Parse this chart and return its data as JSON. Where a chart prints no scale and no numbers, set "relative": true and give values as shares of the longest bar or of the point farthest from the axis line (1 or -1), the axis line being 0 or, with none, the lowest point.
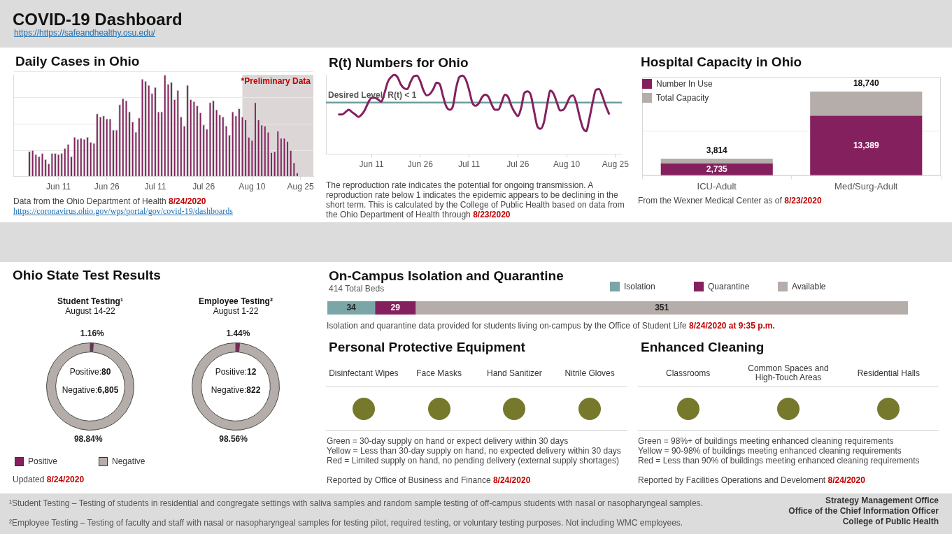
{
  "chart_data": [
    {
      "type": "other",
      "title": "COVID-19 Dashboard",
      "annotations": [
        "https://https://safeandhealthy.osu.edu/"
      ]
    },
    {
      "type": "bar",
      "title": "Daily Cases in Ohio",
      "x": [
        "--06-02",
        "--06-03",
        "--06-04",
        "--06-05",
        "--06-06",
        "--06-07",
        "--06-08",
        "--06-09",
        "--06-10",
        "--06-11",
        "--06-12",
        "--06-13",
        "--06-14",
        "--06-15",
        "--06-16",
        "--06-17",
        "--06-18",
        "--06-19",
        "--06-20",
        "--06-21",
        "--06-22",
        "--06-23",
        "--06-24",
        "--06-25",
        "--06-26",
        "--06-27",
        "--06-28",
        "--06-29",
        "--06-30",
        "--07-01",
        "--07-02",
        "--07-03",
        "--07-04",
        "--07-05",
        "--07-06",
        "--07-07",
        "--07-08",
        "--07-09",
        "--07-10",
        "--07-11",
        "--07-12",
        "--07-13",
        "--07-14",
        "--07-15",
        "--07-16",
        "--07-17",
        "--07-18",
        "--07-19",
        "--07-20",
        "--07-21",
        "--07-22",
        "--07-23",
        "--07-24",
        "--07-25",
        "--07-26",
        "--07-27",
        "--07-28",
        "--07-29",
        "--07-30",
        "--07-31",
        "--08-01",
        "--08-02",
        "--08-03",
        "--08-04",
        "--08-05",
        "--08-06",
        "--08-07",
        "--08-08",
        "--08-09",
        "--08-10",
        "--08-11",
        "--08-12",
        "--08-13",
        "--08-14",
        "--08-15",
        "--08-16",
        "--08-17",
        "--08-18",
        "--08-19",
        "--08-20",
        "--08-21",
        "--08-22",
        "--08-23",
        "--08-24"
      ],
      "values": [
        0.25,
        0.26,
        0.22,
        0.2,
        0.23,
        0.17,
        0.13,
        0.23,
        0.23,
        0.22,
        0.23,
        0.28,
        0.32,
        0.2,
        0.39,
        0.37,
        0.38,
        0.37,
        0.39,
        0.34,
        0.33,
        0.62,
        0.59,
        0.6,
        0.57,
        0.57,
        0.46,
        0.46,
        0.71,
        0.77,
        0.75,
        0.64,
        0.54,
        0.44,
        0.58,
        0.96,
        0.94,
        0.9,
        0.82,
        0.88,
        0.64,
        0.64,
        1,
        0.91,
        0.93,
        0.76,
        0.85,
        0.59,
        0.5,
        0.9,
        0.76,
        0.74,
        0.7,
        0.63,
        0.51,
        0.47,
        0.73,
        0.75,
        0.66,
        0.61,
        0.59,
        0.5,
        0.41,
        0.64,
        0.6,
        0.67,
        0.59,
        0.56,
        0.39,
        0.36,
        0.73,
        0.56,
        0.51,
        0.5,
        0.44,
        0.24,
        0.25,
        0.45,
        0.38,
        0.38,
        0.35,
        0.26,
        0.14,
        0.04
      ],
      "color": "#85205e",
      "relative": true,
      "xlim": [
        "--05-28",
        "--08-29"
      ],
      "xticks": [
        {
          "value": "--06-11",
          "label": "Jun 11"
        },
        {
          "value": "--06-26",
          "label": "Jun 26"
        },
        {
          "value": "--07-11",
          "label": "Jul 11"
        },
        {
          "value": "--07-26",
          "label": "Jul 26"
        },
        {
          "value": "--08-10",
          "label": "Aug 10"
        },
        {
          "value": "--08-25",
          "label": "Aug 25"
        }
      ],
      "grid": "y",
      "bands": [
        {
          "axis": "x",
          "from": "--08-07",
          "to": "--08-29",
          "label": "*Preliminary Data",
          "color": "#dcd6d6"
        }
      ],
      "annotations": [
        "Data from the Ohio Department of Health 8/24/2020",
        "https://coronavirus.ohio.gov/wps/portal/gov/covid-19/dashboards"
      ]
    },
    {
      "type": "line",
      "title": "R(t) Numbers for Ohio",
      "x": [
        "--06-01",
        "--06-02",
        "--06-03",
        "--06-04",
        "--06-05",
        "--06-06",
        "--06-07",
        "--06-08",
        "--06-09",
        "--06-10",
        "--06-11",
        "--06-12",
        "--06-13",
        "--06-14",
        "--06-15",
        "--06-16",
        "--06-17",
        "--06-18",
        "--06-19",
        "--06-20",
        "--06-21",
        "--06-22",
        "--06-23",
        "--06-24",
        "--06-25",
        "--06-26",
        "--06-27",
        "--06-28",
        "--06-29",
        "--06-30",
        "--07-01",
        "--07-02",
        "--07-03",
        "--07-04",
        "--07-05",
        "--07-06",
        "--07-07",
        "--07-08",
        "--07-09",
        "--07-10",
        "--07-11",
        "--07-12",
        "--07-13",
        "--07-14",
        "--07-15",
        "--07-16",
        "--07-17",
        "--07-18",
        "--07-19",
        "--07-20",
        "--07-21",
        "--07-22",
        "--07-23",
        "--07-24",
        "--07-25",
        "--07-26",
        "--07-27",
        "--07-28",
        "--07-29",
        "--07-30",
        "--07-31",
        "--08-01",
        "--08-02",
        "--08-03",
        "--08-04",
        "--08-05",
        "--08-06",
        "--08-07",
        "--08-08",
        "--08-09",
        "--08-10",
        "--08-11",
        "--08-12",
        "--08-13",
        "--08-14",
        "--08-15",
        "--08-16",
        "--08-17",
        "--08-18",
        "--08-19",
        "--08-20",
        "--08-21",
        "--08-22",
        "--08-23"
      ],
      "values": [
        0.5,
        0.5,
        0.53,
        0.56,
        0.53,
        0.5,
        0.47,
        0.5,
        0.56,
        0.65,
        0.71,
        0.71,
        0.69,
        0.66,
        0.77,
        0.91,
        0.97,
        1,
        0.97,
        0.88,
        0.83,
        0.82,
        0.91,
        0.98,
        0.99,
        0.92,
        0.8,
        0.74,
        0.76,
        0.82,
        0.9,
        0.88,
        0.73,
        0.6,
        0.56,
        0.6,
        0.83,
        0.97,
        0.99,
        0.94,
        0.81,
        0.65,
        0.61,
        0.64,
        0.72,
        0.75,
        0.72,
        0.62,
        0.56,
        0.56,
        0.65,
        0.75,
        0.72,
        0.61,
        0.53,
        0.48,
        0.58,
        0.77,
        0.79,
        0.74,
        0.54,
        0.35,
        0.32,
        0.4,
        0.62,
        0.8,
        0.76,
        0.65,
        0.55,
        0.56,
        0.63,
        0.72,
        0.74,
        0.64,
        0.47,
        0.33,
        0.29,
        0.45,
        0.65,
        0.81,
        0.82,
        0.73,
        0.61,
        0.51
      ],
      "color": "#85205e",
      "relative": true,
      "xlim": [
        "--05-28",
        "--08-27"
      ],
      "xticks": [
        {
          "value": "--06-11",
          "label": "Jun 11"
        },
        {
          "value": "--06-26",
          "label": "Jun 26"
        },
        {
          "value": "--07-11",
          "label": "Jul 11"
        },
        {
          "value": "--07-26",
          "label": "Jul 26"
        },
        {
          "value": "--08-10",
          "label": "Aug 10"
        },
        {
          "value": "--08-25",
          "label": "Aug 25"
        }
      ],
      "ref_lines": [
        {
          "axis": "y",
          "value": 0.65,
          "label": "Desired Level: R(t) < 1",
          "color": "#6f9c9c"
        }
      ],
      "annotations": [
        "The reproduction rate indicates the potential for ongoing transmission. A reproduction rate below 1 indicates the epidemic appears to be declining in the short term. This is calculated by the College of Public Health based on data from the Ohio Department of Health through 8/23/2020"
      ]
    },
    {
      "type": "bar",
      "title": "Hospital Capacity in Ohio",
      "categories": [
        "ICU-Adult",
        "Med/Surg-Adult"
      ],
      "stacked": true,
      "series": [
        {
          "name": "Number In Use",
          "color": "#85205e",
          "values": [
            2735,
            13389
          ],
          "value_labels": [
            "2,735",
            "13,389"
          ]
        },
        {
          "name": "Total Capacity",
          "color": "#b5adaa",
          "values": [
            1079,
            5351
          ]
        }
      ],
      "totals": [
        "3,814",
        "18,740"
      ],
      "ylim": [
        0,
        22000
      ],
      "yticks": [
        {
          "value": 10000,
          "label": null
        }
      ],
      "legend": "top left",
      "grid": "y",
      "annotations": [
        "From the Wexner Medical Center as of 8/23/2020"
      ]
    },
    {
      "type": "other",
      "title": "Ohio State Test Results",
      "annotations": [
        "Updated 8/24/2020"
      ]
    },
    {
      "type": "donut",
      "title": "Student Testing¹",
      "subtitle": "August 14-22",
      "categories": [
        "Positive",
        "Negative"
      ],
      "values": [
        1.16,
        98.84
      ],
      "colors": [
        "#85205e",
        "#b5adaa"
      ],
      "value_labels": [
        "1.16%",
        "98.84%"
      ],
      "legend": "bottom",
      "annotations": [
        "Positive:80",
        "Negative:6,805"
      ]
    },
    {
      "type": "donut",
      "title": "Employee Testing²",
      "subtitle": "August 1-22",
      "categories": [
        null,
        null
      ],
      "values": [
        1.44,
        98.56
      ],
      "colors": [
        "#85205e",
        "#b5adaa"
      ],
      "value_labels": [
        "1.44%",
        "98.56%"
      ],
      "annotations": [
        "Positive:12",
        "Negative:822"
      ]
    },
    {
      "type": "bar",
      "title": "On-Campus Isolation and Quarantine",
      "subtitle": "414 Total Beds",
      "orientation": "horizontal",
      "stacked": true,
      "categories": [
        null
      ],
      "series": [
        {
          "name": "Isolation",
          "color": "#7aa6a8",
          "values": [
            34
          ]
        },
        {
          "name": "Quarantine",
          "color": "#85205e",
          "values": [
            29
          ]
        },
        {
          "name": "Available",
          "color": "#b5adaa",
          "values": [
            351
          ]
        }
      ],
      "data_labels": true,
      "legend": "top right",
      "annotations": [
        "Isolation and quarantine data provided for students living on-campus by the Office of Student Life 8/24/2020 at 9:35 p.m."
      ]
    },
    {
      "type": "other",
      "title": "Personal Protective Equipment",
      "categories": [
        "Disinfectant Wipes",
        "Face Masks",
        "Hand Sanitizer",
        "Nitrile Gloves"
      ],
      "colors": [
        "#76792c",
        "#76792c",
        "#76792c",
        "#76792c"
      ],
      "annotations": [
        "Green = 30-day supply on hand or expect delivery within 30 days",
        "Yellow = Less than 30-day supply on hand, no expected delivery within 30 days",
        "Red = Limited supply on hand, no pending delivery (external supply shortages)",
        "Reported by Office of Business and Finance 8/24/2020"
      ]
    },
    {
      "type": "other",
      "title": "Enhanced Cleaning",
      "categories": [
        "Classrooms",
        "Common Spaces and High-Touch Areas",
        "Residential Halls"
      ],
      "colors": [
        "#76792c",
        "#76792c",
        "#76792c"
      ],
      "annotations": [
        "Green = 98%+ of buildings meeting enhanced cleaning requirements",
        "Yellow = 90-98% of buildings meeting enhanced cleaning requirements",
        "Red = Less than 90% of buildings meeting enhanced cleaning requirements",
        "Reported by Facilities Operations and Develoment 8/24/2020"
      ]
    },
    {
      "type": "other",
      "annotations": [
        "¹Student Testing – Testing of students in residential and congregate settings with saliva samples and random sample testing of off-campus students with nasal or nasopharyngeal samples.",
        "²Employee Testing – Testing of faculty and staff with nasal or nasopharyngeal samples for testing pilot, required testing, or voluntary testing purposes.  Not including WMC employees."
      ]
    },
    {
      "type": "other",
      "annotations": [
        "Strategy Management Office",
        "Office of the Chief Information Officer",
        "College of Public Health"
      ]
    }
  ]
}
